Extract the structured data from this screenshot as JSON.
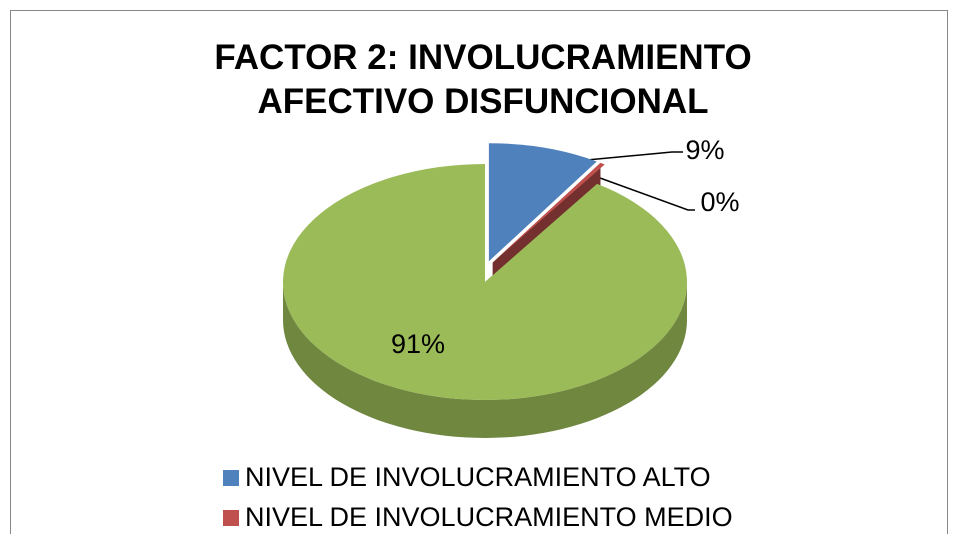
{
  "chart_data": {
    "type": "pie",
    "title": "FACTOR 2: INVOLUCRAMIENTO AFECTIVO  DISFUNCIONAL",
    "categories": [
      "NIVEL DE INVOLUCRAMIENTO ALTO",
      "NIVEL DE INVOLUCRAMIENTO MEDIO",
      null
    ],
    "values": [
      9,
      0.4,
      91
    ],
    "value_labels": [
      "9%",
      "0%",
      "91%"
    ],
    "colors": [
      "#4f81bd",
      "#c0504d",
      "#9bbb59"
    ],
    "legend": "bottom"
  }
}
